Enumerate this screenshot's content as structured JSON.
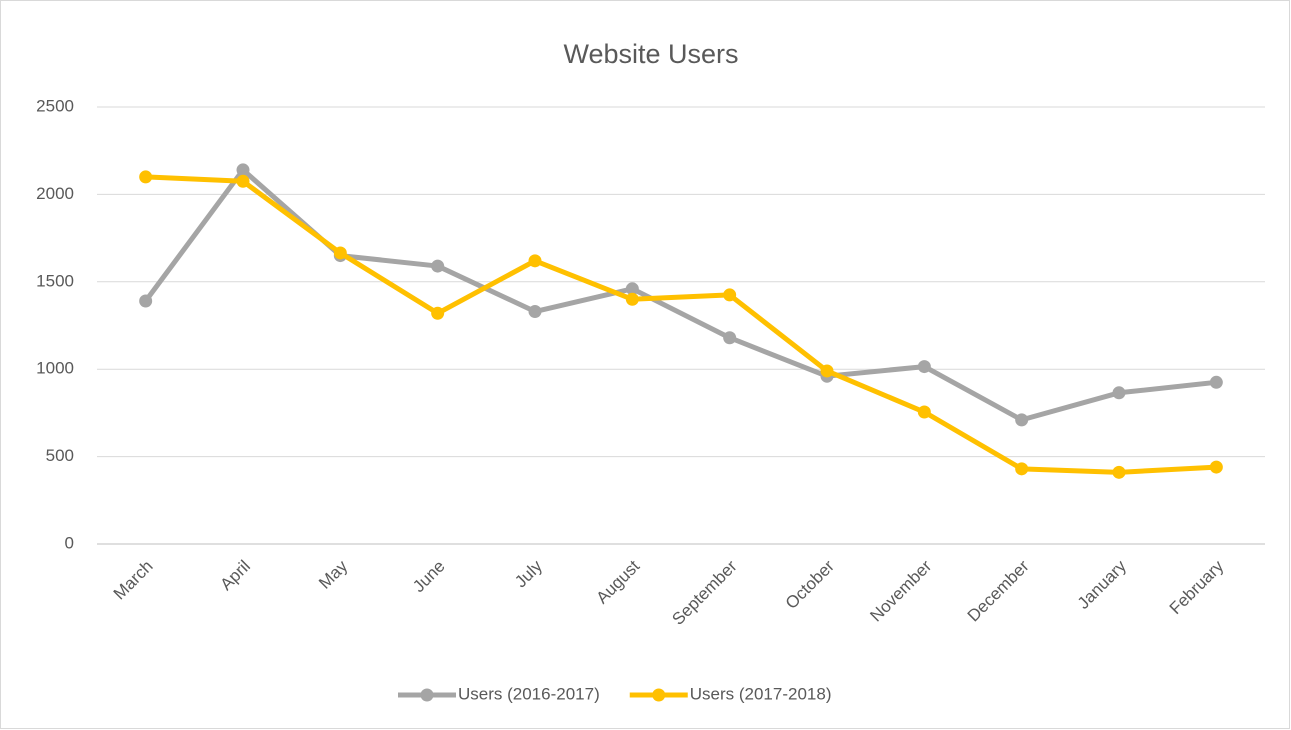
{
  "chart_data": {
    "type": "line",
    "title": "Website Users",
    "categories": [
      "March",
      "April",
      "May",
      "June",
      "July",
      "August",
      "September",
      "October",
      "November",
      "December",
      "January",
      "February"
    ],
    "series": [
      {
        "name": "Users (2016-2017)",
        "color": "#a5a5a5",
        "values": [
          1390,
          2140,
          1650,
          1590,
          1330,
          1460,
          1180,
          960,
          1015,
          710,
          865,
          925
        ]
      },
      {
        "name": "Users (2017-2018)",
        "color": "#ffc000",
        "values": [
          2100,
          2075,
          1665,
          1320,
          1620,
          1400,
          1425,
          990,
          755,
          430,
          410,
          440
        ]
      }
    ],
    "ylim": [
      0,
      2500
    ],
    "yticks": [
      0,
      500,
      1000,
      1500,
      2000,
      2500
    ],
    "grid": true,
    "legend": "bottom"
  }
}
